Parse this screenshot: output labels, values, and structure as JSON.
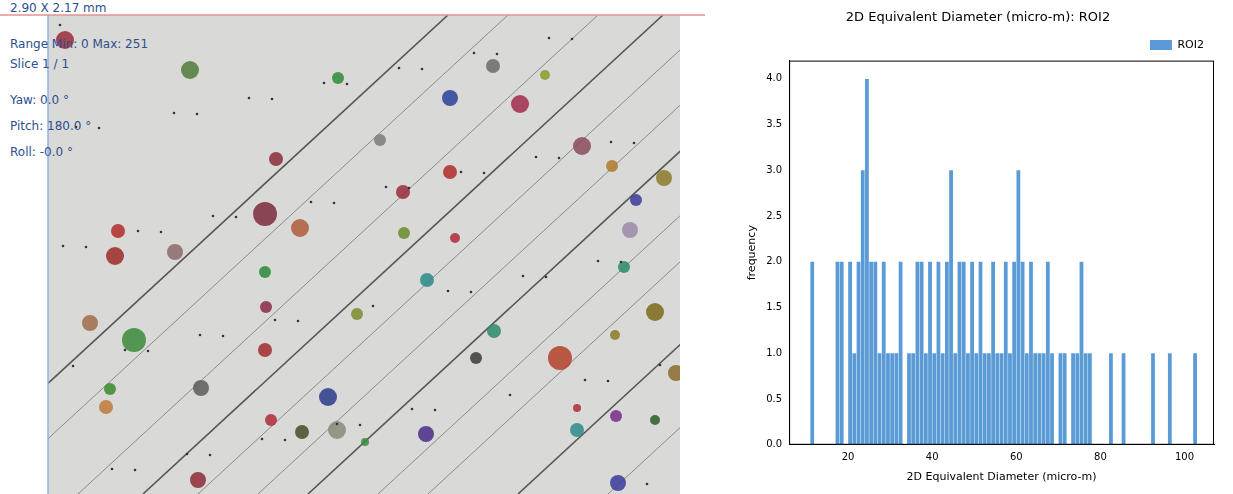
{
  "chart_data": {
    "type": "histogram",
    "title": "2D Equivalent Diameter (micro-m): ROI2",
    "x_label": "2D Equivalent Diameter (micro-m)",
    "y_label": "frequency",
    "bins": [
      11,
      12,
      13,
      14,
      15,
      16,
      17,
      18,
      19,
      20,
      21,
      22,
      23,
      24,
      25,
      26,
      27,
      28,
      29,
      30,
      31,
      32,
      33,
      34,
      35,
      36,
      37,
      38,
      39,
      40,
      41,
      42,
      43,
      44,
      45,
      46,
      47,
      48,
      49,
      50,
      51,
      52,
      53,
      54,
      55,
      56,
      57,
      58,
      59,
      60,
      61,
      62,
      63,
      64,
      65,
      66,
      67,
      68,
      69,
      70,
      71,
      72,
      73,
      74,
      75,
      76,
      77,
      78,
      79,
      80,
      81,
      82,
      83,
      84,
      85,
      86,
      87,
      88,
      89,
      90,
      91,
      92,
      93,
      94,
      95,
      96,
      97,
      98,
      99,
      100,
      101,
      102,
      103
    ],
    "series": [
      {
        "name": "ROI2",
        "color": "#5b9bd5",
        "values": [
          2,
          0,
          0,
          0,
          0,
          0,
          2,
          2,
          0,
          2,
          1,
          2,
          3,
          4,
          2,
          2,
          1,
          2,
          1,
          1,
          1,
          2,
          0,
          1,
          1,
          2,
          2,
          1,
          2,
          1,
          2,
          1,
          2,
          3,
          1,
          2,
          2,
          1,
          2,
          1,
          2,
          1,
          1,
          2,
          1,
          1,
          2,
          1,
          2,
          3,
          2,
          1,
          2,
          1,
          1,
          1,
          2,
          1,
          0,
          1,
          1,
          0,
          1,
          1,
          2,
          1,
          1,
          0,
          0,
          0,
          0,
          1,
          0,
          0,
          1,
          0,
          0,
          0,
          0,
          0,
          0,
          1,
          0,
          0,
          0,
          1,
          0,
          0,
          0,
          0,
          0,
          1
        ]
      }
    ],
    "xlim": [
      6,
      107
    ],
    "xticks": [
      20,
      40,
      60,
      80,
      100
    ],
    "ylim": [
      0,
      4.2
    ],
    "yticks": [
      {
        "value": 0,
        "label": "0.0"
      },
      {
        "value": 0.5,
        "label": "0.5"
      },
      {
        "value": 1,
        "label": "1.0"
      },
      {
        "value": 1.5,
        "label": "1.5"
      },
      {
        "value": 2,
        "label": "2.0"
      },
      {
        "value": 2.5,
        "label": "2.5"
      },
      {
        "value": 3,
        "label": "3.0"
      },
      {
        "value": 3.5,
        "label": "3.5"
      },
      {
        "value": 4,
        "label": "4.0"
      }
    ],
    "legend": "upper right",
    "grid": false
  },
  "image_panel": {
    "scale_label": "2.90 X 2.17 mm",
    "info": [
      "Range Min: 0 Max: 251",
      "Slice 1 / 1"
    ],
    "angles": [
      "Yaw: 0.0 °",
      "Pitch: 180.0 °",
      "Roll: -0.0 °"
    ]
  }
}
